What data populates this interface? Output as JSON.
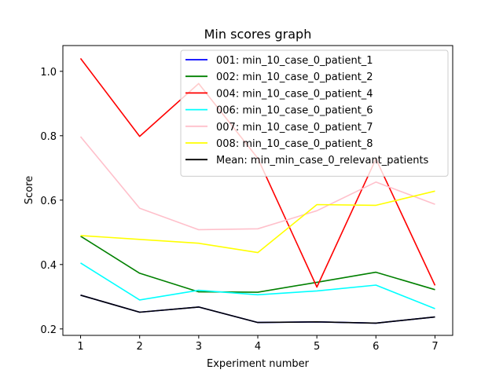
{
  "chart_data": {
    "type": "line",
    "title": "Min scores graph",
    "xlabel": "Experiment number",
    "ylabel": "Score",
    "x": [
      1,
      2,
      3,
      4,
      5,
      6,
      7
    ],
    "xticks": [
      "1",
      "2",
      "3",
      "4",
      "5",
      "6",
      "7"
    ],
    "yticks": [
      "0.2",
      "0.4",
      "0.6",
      "0.8",
      "1.0"
    ],
    "xlim": [
      0.7,
      7.3
    ],
    "ylim": [
      0.18,
      1.08
    ],
    "grid": false,
    "legend_position": "upper right",
    "series": [
      {
        "name": "001: min_10_case_0_patient_1",
        "color": "#0000ff",
        "values": [
          0.305,
          0.252,
          0.268,
          0.22,
          0.222,
          0.218,
          0.237
        ]
      },
      {
        "name": "002: min_10_case_0_patient_2",
        "color": "#008000",
        "values": [
          0.488,
          0.373,
          0.315,
          0.314,
          0.345,
          0.376,
          0.322
        ]
      },
      {
        "name": "004: min_10_case_0_patient_4",
        "color": "#ff0000",
        "values": [
          1.04,
          0.798,
          0.962,
          0.73,
          0.33,
          0.728,
          0.335
        ]
      },
      {
        "name": "006: min_10_case_0_patient_6",
        "color": "#00ffff",
        "values": [
          0.405,
          0.29,
          0.32,
          0.306,
          0.318,
          0.336,
          0.263
        ]
      },
      {
        "name": "007: min_10_case_0_patient_7",
        "color": "#ffc0cb",
        "values": [
          0.797,
          0.575,
          0.508,
          0.511,
          0.567,
          0.656,
          0.587
        ]
      },
      {
        "name": "008: min_10_case_0_patient_8",
        "color": "#ffff00",
        "values": [
          0.49,
          0.478,
          0.466,
          0.437,
          0.586,
          0.584,
          0.628
        ]
      },
      {
        "name": "Mean: min_min_case_0_relevant_patients",
        "color": "#000000",
        "values": [
          0.305,
          0.252,
          0.268,
          0.22,
          0.222,
          0.218,
          0.237
        ]
      }
    ]
  }
}
